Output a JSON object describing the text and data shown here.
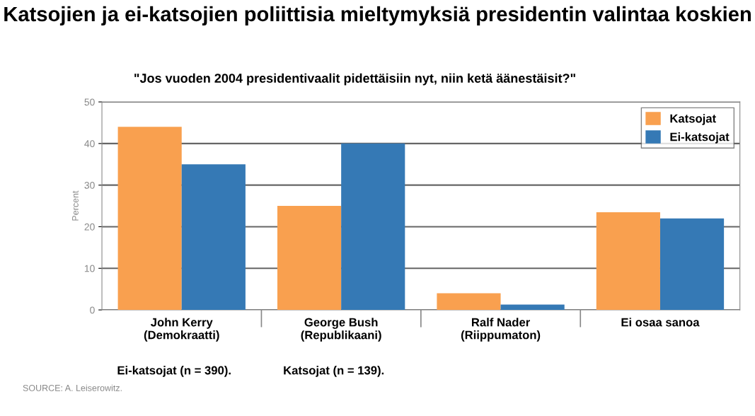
{
  "chart_data": {
    "type": "bar",
    "title": "Katsojien ja ei-katsojien poliittisia mieltymyksiä presidentin valintaa koskien",
    "subtitle": "\"Jos vuoden 2004 presidentivaalit pidettäisiin nyt, niin ketä äänestäisit?\"",
    "ylabel": "Percent",
    "categories": [
      "John Kerry\n(Demokraatti)",
      "George Bush\n(Republikaani)",
      "Ralf Nader\n(Riippumaton)",
      "Ei osaa sanoa"
    ],
    "series": [
      {
        "name": "Katsojat",
        "color": "#f9a04f",
        "values": [
          44,
          25,
          4,
          23.5
        ]
      },
      {
        "name": "Ei-katsojat",
        "color": "#3579b5",
        "values": [
          35,
          40,
          1.3,
          22
        ]
      }
    ],
    "ylim": [
      0,
      50
    ],
    "yticks": [
      0,
      10,
      20,
      30,
      40,
      50
    ],
    "grid": "y",
    "legend": "top right",
    "annotations": [
      "Ei-katsojat (n = 390).",
      "Katsojat (n = 139).",
      "SOURCE: A. Leiserowitz."
    ]
  }
}
